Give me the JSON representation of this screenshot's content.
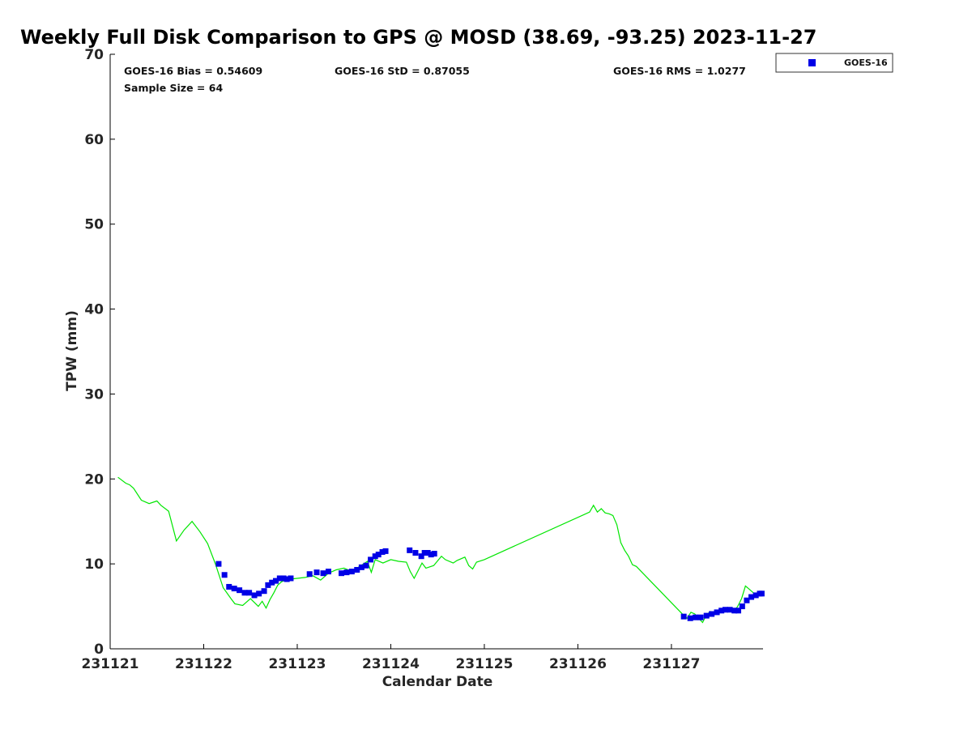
{
  "chart_data": {
    "type": "scatter",
    "title": "Weekly Full Disk Comparison to GPS @ MOSD (38.69, -93.25) 2023-11-27",
    "xlabel": "Calendar Date",
    "ylabel": "TPW (mm)",
    "ylim": [
      0,
      70
    ],
    "xlim": [
      "2023-11-21T00:00",
      "2023-11-27T23:30"
    ],
    "x_ticks": [
      {
        "date": "2023-11-21",
        "label": "231121"
      },
      {
        "date": "2023-11-22",
        "label": "231122"
      },
      {
        "date": "2023-11-23",
        "label": "231123"
      },
      {
        "date": "2023-11-24",
        "label": "231124"
      },
      {
        "date": "2023-11-25",
        "label": "231125"
      },
      {
        "date": "2023-11-26",
        "label": "231126"
      },
      {
        "date": "2023-11-27",
        "label": "231127"
      }
    ],
    "y_ticks": [
      0,
      10,
      20,
      30,
      40,
      50,
      60,
      70
    ],
    "grid": false,
    "legend": {
      "placement": "top-right",
      "entries": [
        "GOES-16"
      ]
    },
    "stats": {
      "bias": "GOES-16 Bias = 0.54609",
      "std": "GOES-16 StD = 0.87055",
      "rms": "GOES-16 RMS = 1.0277",
      "sample_size": "Sample Size = 64"
    },
    "colors": {
      "goes16": "#0000e6",
      "gps": "#00e600"
    },
    "series": [
      {
        "name": "GOES-16",
        "kind": "markers",
        "x": [
          "2023-11-22T03:50",
          "2023-11-22T05:20",
          "2023-11-22T06:30",
          "2023-11-22T07:50",
          "2023-11-22T09:10",
          "2023-11-22T10:30",
          "2023-11-22T11:40",
          "2023-11-22T13:00",
          "2023-11-22T14:10",
          "2023-11-22T15:30",
          "2023-11-22T16:30",
          "2023-11-22T17:30",
          "2023-11-22T18:30",
          "2023-11-22T19:30",
          "2023-11-22T20:30",
          "2023-11-22T21:20",
          "2023-11-22T22:20",
          "2023-11-23T03:10",
          "2023-11-23T05:00",
          "2023-11-23T06:40",
          "2023-11-23T08:00",
          "2023-11-23T11:20",
          "2023-11-23T12:40",
          "2023-11-23T14:00",
          "2023-11-23T15:20",
          "2023-11-23T16:30",
          "2023-11-23T17:40",
          "2023-11-23T18:50",
          "2023-11-23T20:00",
          "2023-11-23T20:50",
          "2023-11-23T21:50",
          "2023-11-23T22:40",
          "2023-11-24T04:50",
          "2023-11-24T06:20",
          "2023-11-24T07:50",
          "2023-11-24T08:40",
          "2023-11-24T09:30",
          "2023-11-24T10:20",
          "2023-11-24T11:10",
          "2023-11-27T03:10",
          "2023-11-27T04:50",
          "2023-11-27T06:10",
          "2023-11-27T07:30",
          "2023-11-27T09:00",
          "2023-11-27T10:20",
          "2023-11-27T11:40",
          "2023-11-27T12:50",
          "2023-11-27T13:50",
          "2023-11-27T15:00",
          "2023-11-27T16:10",
          "2023-11-27T17:10",
          "2023-11-27T18:10",
          "2023-11-27T19:20",
          "2023-11-27T20:30",
          "2023-11-27T21:40",
          "2023-11-27T22:40",
          "2023-11-27T23:10"
        ],
        "y": [
          10.0,
          8.7,
          7.3,
          7.1,
          6.9,
          6.6,
          6.6,
          6.3,
          6.5,
          6.8,
          7.5,
          7.8,
          8.0,
          8.3,
          8.3,
          8.2,
          8.3,
          8.8,
          9.0,
          8.9,
          9.1,
          8.9,
          9.0,
          9.1,
          9.3,
          9.6,
          9.8,
          10.5,
          10.9,
          11.1,
          11.4,
          11.5,
          11.6,
          11.3,
          10.9,
          11.3,
          11.3,
          11.1,
          11.2,
          3.8,
          3.6,
          3.7,
          3.7,
          3.9,
          4.1,
          4.3,
          4.5,
          4.6,
          4.6,
          4.5,
          4.5,
          5.0,
          5.7,
          6.1,
          6.3,
          6.5,
          6.5
        ]
      },
      {
        "name": "",
        "kind": "line",
        "x": [
          "2023-11-21T02:00",
          "2023-11-21T04:00",
          "2023-11-21T05:00",
          "2023-11-21T06:00",
          "2023-11-21T08:00",
          "2023-11-21T10:00",
          "2023-11-21T12:00",
          "2023-11-21T13:00",
          "2023-11-21T15:00",
          "2023-11-21T17:00",
          "2023-11-21T19:00",
          "2023-11-21T21:00",
          "2023-11-21T23:00",
          "2023-11-22T01:00",
          "2023-11-22T03:00",
          "2023-11-22T05:00",
          "2023-11-22T07:00",
          "2023-11-22T08:00",
          "2023-11-22T10:00",
          "2023-11-22T12:00",
          "2023-11-22T14:00",
          "2023-11-22T15:00",
          "2023-11-22T16:00",
          "2023-11-22T17:00",
          "2023-11-22T18:00",
          "2023-11-22T19:00",
          "2023-11-22T20:00",
          "2023-11-22T21:00",
          "2023-11-22T22:00",
          "2023-11-23T00:00",
          "2023-11-23T02:00",
          "2023-11-23T04:00",
          "2023-11-23T06:00",
          "2023-11-23T07:00",
          "2023-11-23T08:00",
          "2023-11-23T10:00",
          "2023-11-23T12:00",
          "2023-11-23T14:00",
          "2023-11-23T16:00",
          "2023-11-23T18:00",
          "2023-11-23T19:00",
          "2023-11-23T20:00",
          "2023-11-23T22:00",
          "2023-11-24T00:00",
          "2023-11-24T02:00",
          "2023-11-24T04:00",
          "2023-11-24T05:00",
          "2023-11-24T06:00",
          "2023-11-24T08:00",
          "2023-11-24T09:00",
          "2023-11-24T11:00",
          "2023-11-24T13:00",
          "2023-11-24T14:00",
          "2023-11-24T16:00",
          "2023-11-24T17:00",
          "2023-11-24T19:00",
          "2023-11-24T20:00",
          "2023-11-24T21:00",
          "2023-11-24T22:00",
          "2023-11-25T00:00",
          "2023-11-26T03:00",
          "2023-11-26T04:00",
          "2023-11-26T05:00",
          "2023-11-26T06:00",
          "2023-11-26T07:00",
          "2023-11-26T08:00",
          "2023-11-26T09:00",
          "2023-11-26T10:00",
          "2023-11-26T11:00",
          "2023-11-26T12:00",
          "2023-11-26T13:00",
          "2023-11-26T14:00",
          "2023-11-26T15:00",
          "2023-11-27T03:00",
          "2023-11-27T04:00",
          "2023-11-27T05:00",
          "2023-11-27T06:00",
          "2023-11-27T07:00",
          "2023-11-27T08:00",
          "2023-11-27T09:00",
          "2023-11-27T10:00",
          "2023-11-27T11:00",
          "2023-11-27T12:00",
          "2023-11-27T14:00",
          "2023-11-27T16:00",
          "2023-11-27T17:00",
          "2023-11-27T18:00",
          "2023-11-27T19:00",
          "2023-11-27T20:00",
          "2023-11-27T21:00",
          "2023-11-27T22:00",
          "2023-11-27T23:00",
          "2023-11-27T23:50"
        ],
        "y": [
          20.2,
          19.5,
          19.3,
          18.9,
          17.5,
          17.1,
          17.4,
          16.9,
          16.2,
          12.7,
          14.0,
          15.0,
          13.8,
          12.4,
          10.0,
          7.2,
          5.9,
          5.3,
          5.1,
          5.9,
          5.0,
          5.6,
          4.8,
          5.8,
          6.6,
          7.5,
          7.9,
          8.1,
          8.2,
          8.3,
          8.4,
          8.6,
          8.1,
          8.5,
          8.9,
          9.3,
          9.5,
          9.1,
          9.7,
          10.3,
          9.0,
          10.5,
          10.1,
          10.5,
          10.3,
          10.2,
          9.1,
          8.3,
          10.1,
          9.5,
          9.8,
          10.9,
          10.5,
          10.1,
          10.4,
          10.8,
          9.8,
          9.4,
          10.2,
          10.5,
          16.1,
          16.9,
          16.1,
          16.5,
          16.0,
          15.9,
          15.7,
          14.6,
          12.5,
          11.6,
          10.9,
          9.9,
          9.7,
          4.0,
          3.6,
          4.3,
          4.1,
          3.6,
          3.1,
          4.0,
          4.4,
          4.1,
          4.2,
          4.5,
          4.3,
          5.0,
          5.9,
          7.4,
          7.0,
          6.6,
          6.3,
          6.6,
          6.8
        ]
      }
    ]
  }
}
